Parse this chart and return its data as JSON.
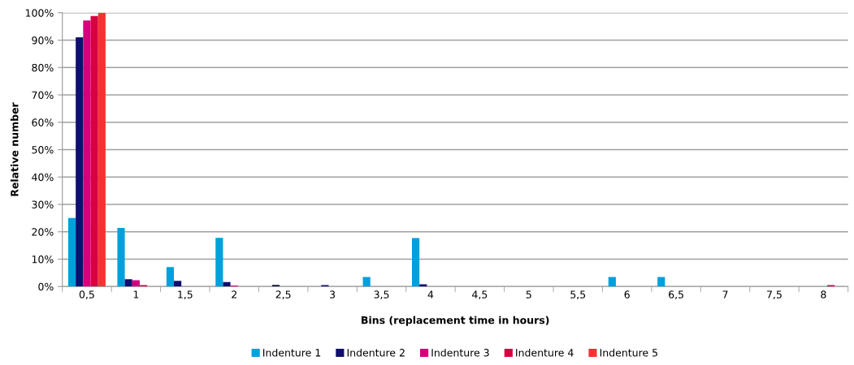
{
  "chart_data": {
    "type": "bar",
    "xlabel": "Bins (replacement time in hours)",
    "ylabel": "Relative number",
    "categories": [
      "0,5",
      "1",
      "1,5",
      "2",
      "2,5",
      "3",
      "3,5",
      "4",
      "4,5",
      "5",
      "5,5",
      "6",
      "6,5",
      "7",
      "7,5",
      "8"
    ],
    "series": [
      {
        "name": "Indenture 1",
        "color": "#00a0dc",
        "values": [
          25,
          21.4,
          7.1,
          17.8,
          0,
          0,
          3.5,
          17.7,
          0,
          0,
          0,
          3.5,
          3.5,
          0,
          0,
          0
        ]
      },
      {
        "name": "Indenture 2",
        "color": "#0f0f6e",
        "values": [
          91,
          2.7,
          2.1,
          1.6,
          0.6,
          0.5,
          0,
          0.8,
          0,
          null,
          0,
          null,
          0,
          0,
          0,
          0
        ]
      },
      {
        "name": "Indenture 3",
        "color": "#d4007c",
        "values": [
          97.2,
          2.3,
          0,
          0.4,
          0,
          0,
          0,
          0,
          0,
          0,
          0,
          0,
          0,
          0,
          0,
          0
        ]
      },
      {
        "name": "Indenture 4",
        "color": "#d70041",
        "values": [
          98.8,
          0.5,
          0,
          0,
          0,
          0,
          0,
          0,
          0,
          0,
          0,
          0,
          0,
          0,
          0,
          0.5
        ]
      },
      {
        "name": "Indenture 5",
        "color": "#f53232",
        "values": [
          100,
          0,
          0,
          0,
          0,
          0,
          0,
          0,
          0,
          0,
          0,
          0,
          0,
          0,
          0,
          0
        ]
      }
    ],
    "ylim": [
      0,
      100
    ],
    "yticks": [
      {
        "value": 0,
        "label": "0%"
      },
      {
        "value": 10,
        "label": "10%"
      },
      {
        "value": 20,
        "label": "20%"
      },
      {
        "value": 30,
        "label": "30%"
      },
      {
        "value": 40,
        "label": "40%"
      },
      {
        "value": 50,
        "label": "50%"
      },
      {
        "value": 60,
        "label": "60%"
      },
      {
        "value": 70,
        "label": "70%"
      },
      {
        "value": 80,
        "label": "80%"
      },
      {
        "value": 90,
        "label": "90%"
      },
      {
        "value": 100,
        "label": "100%"
      }
    ],
    "grid": "y",
    "legend": "bottom"
  }
}
